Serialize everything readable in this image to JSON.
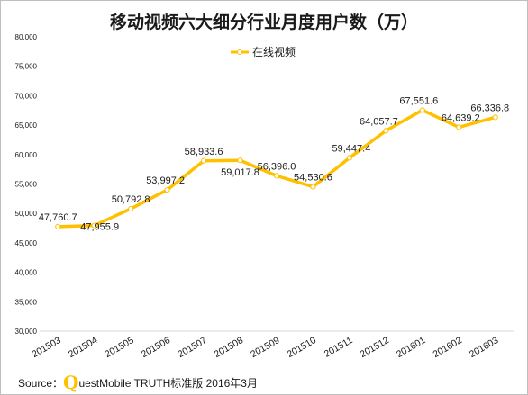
{
  "title": "移动视频六大细分行业月度用户数（万）",
  "source": {
    "label": "Source：",
    "logo_letter": "Q",
    "text": "uestMobile TRUTH标准版 2016年3月"
  },
  "colors": {
    "line": "#ffc000",
    "marker_fill": "#ffffff",
    "text": "#1a1a1a",
    "grid": "#d9d9d9"
  },
  "chart_data": {
    "type": "line",
    "title": "移动视频六大细分行业月度用户数（万）",
    "categories": [
      "201503",
      "201504",
      "201505",
      "201506",
      "201507",
      "201508",
      "201509",
      "201510",
      "201511",
      "201512",
      "201601",
      "201602",
      "201603"
    ],
    "series": [
      {
        "name": "在线视频",
        "values": [
          47760.7,
          47955.9,
          50792.8,
          53997.2,
          58933.6,
          59017.8,
          56396.0,
          54530.6,
          59447.4,
          64057.7,
          67551.6,
          64639.2,
          66336.8
        ],
        "labels": [
          "47,760.7",
          "47,955.9",
          "50,792.8",
          "53,997.2",
          "58,933.6",
          "59,017.8",
          "56,396.0",
          "54,530.6",
          "59,447.4",
          "64,057.7",
          "67,551.6",
          "64,639.2",
          "66,336.8"
        ]
      }
    ],
    "ylim": [
      30000,
      80000
    ],
    "yticks": [
      30000,
      35000,
      40000,
      45000,
      50000,
      55000,
      60000,
      65000,
      70000,
      75000,
      80000
    ],
    "ytick_labels": [
      "30,000",
      "35,000",
      "40,000",
      "45,000",
      "50,000",
      "55,000",
      "60,000",
      "65,000",
      "70,000",
      "75,000",
      "80,000"
    ],
    "legend_position": "top-center",
    "grid": false
  }
}
